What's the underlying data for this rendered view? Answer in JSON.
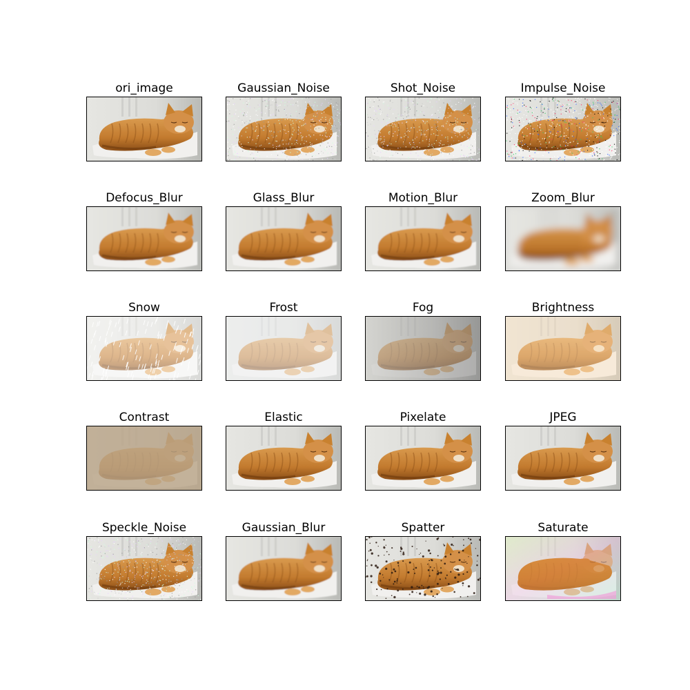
{
  "panels": [
    {
      "title": "ori_image",
      "effect": "none"
    },
    {
      "title": "Gaussian_Noise",
      "effect": "noise"
    },
    {
      "title": "Shot_Noise",
      "effect": "noise"
    },
    {
      "title": "Impulse_Noise",
      "effect": "impulse"
    },
    {
      "title": "Defocus_Blur",
      "effect": "blur-light"
    },
    {
      "title": "Glass_Blur",
      "effect": "blur-light"
    },
    {
      "title": "Motion_Blur",
      "effect": "blur-light"
    },
    {
      "title": "Zoom_Blur",
      "effect": "zoom"
    },
    {
      "title": "Snow",
      "effect": "snow"
    },
    {
      "title": "Frost",
      "effect": "frost"
    },
    {
      "title": "Fog",
      "effect": "fog"
    },
    {
      "title": "Brightness",
      "effect": "bright"
    },
    {
      "title": "Contrast",
      "effect": "contrast"
    },
    {
      "title": "Elastic",
      "effect": "none"
    },
    {
      "title": "Pixelate",
      "effect": "none"
    },
    {
      "title": "JPEG",
      "effect": "none"
    },
    {
      "title": "Speckle_Noise",
      "effect": "noise"
    },
    {
      "title": "Gaussian_Blur",
      "effect": "blur-light"
    },
    {
      "title": "Spatter",
      "effect": "spatter"
    },
    {
      "title": "Saturate",
      "effect": "saturate"
    }
  ],
  "colors": {
    "cat_fur": "#c27a2e",
    "cat_shadow": "#8a4d17",
    "background": "#dcdcd8",
    "cushion": "#f1f0ee"
  }
}
